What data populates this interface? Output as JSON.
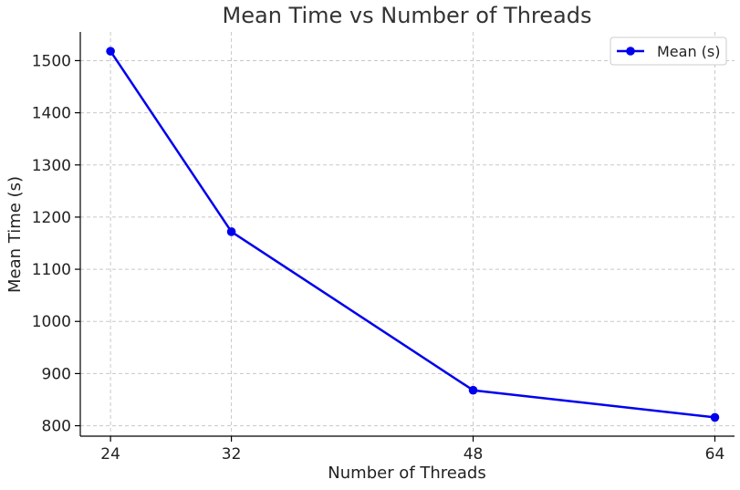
{
  "chart_data": {
    "type": "line",
    "title": "Mean Time vs Number of Threads",
    "xlabel": "Number of Threads",
    "ylabel": "Mean Time (s)",
    "x": [
      24,
      32,
      48,
      64
    ],
    "series": [
      {
        "name": "Mean (s)",
        "color": "#0000ee",
        "marker": "circle",
        "values": [
          1518,
          1172,
          868,
          816
        ]
      }
    ],
    "xticks": [
      24,
      32,
      48,
      64
    ],
    "yticks": [
      800,
      900,
      1000,
      1100,
      1200,
      1300,
      1400,
      1500
    ],
    "xlim": [
      22,
      65.3
    ],
    "ylim": [
      780,
      1555
    ],
    "grid": true,
    "legend": "top-right"
  }
}
